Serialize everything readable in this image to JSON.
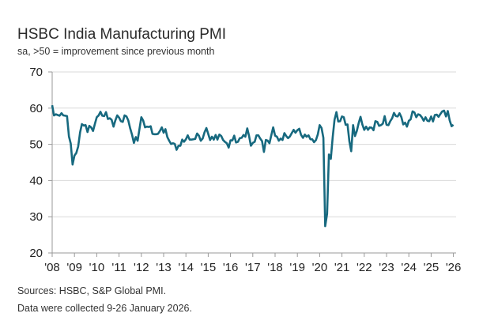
{
  "chart_data": {
    "type": "line",
    "title": "HSBC India Manufacturing PMI",
    "subtitle": "sa, >50 = improvement since previous month",
    "xlabel": "",
    "ylabel": "",
    "ylim": [
      20,
      70
    ],
    "yticks": [
      "20",
      "30",
      "40",
      "50",
      "60",
      "70"
    ],
    "xticks": [
      "'08",
      "'09",
      "'10",
      "'11",
      "'12",
      "'13",
      "'14",
      "'15",
      "'16",
      "'17",
      "'18",
      "'19",
      "'20",
      "'21",
      "'22",
      "'23",
      "'24",
      "'25",
      "'26"
    ],
    "x_start": "2008-01",
    "x_frequency": "monthly",
    "grid": "horizontal",
    "line_color": "#17697f",
    "values": [
      60.8,
      58.0,
      58.3,
      58.1,
      57.9,
      58.6,
      58.0,
      57.9,
      57.8,
      52.2,
      50.2,
      44.4,
      46.9,
      47.6,
      49.4,
      53.3,
      55.6,
      55.2,
      55.3,
      53.4,
      55.1,
      54.7,
      53.7,
      55.7,
      57.5,
      58.0,
      59.0,
      57.9,
      57.8,
      58.9,
      57.0,
      57.2,
      56.8,
      54.9,
      56.6,
      58.0,
      57.4,
      56.4,
      56.2,
      58.0,
      57.7,
      56.6,
      54.4,
      52.6,
      50.4,
      52.0,
      51.0,
      54.2,
      57.5,
      56.6,
      54.7,
      54.9,
      54.8,
      55.0,
      52.9,
      52.8,
      52.8,
      52.9,
      53.7,
      54.7,
      53.2,
      54.2,
      52.0,
      51.0,
      50.1,
      50.3,
      50.1,
      48.5,
      49.6,
      49.6,
      51.3,
      50.7,
      51.4,
      52.5,
      51.3,
      51.3,
      51.4,
      51.5,
      53.0,
      52.4,
      51.0,
      51.6,
      53.3,
      54.5,
      52.9,
      51.2,
      52.1,
      51.3,
      52.6,
      51.3,
      52.7,
      52.3,
      51.2,
      50.7,
      50.3,
      49.1,
      51.1,
      51.1,
      52.4,
      50.5,
      50.7,
      51.7,
      51.8,
      52.6,
      52.1,
      54.4,
      52.3,
      49.6,
      50.4,
      50.7,
      52.5,
      52.5,
      51.6,
      50.9,
      47.9,
      51.2,
      51.0,
      50.3,
      52.6,
      54.7,
      52.4,
      52.1,
      51.0,
      51.6,
      51.2,
      53.1,
      52.3,
      51.7,
      52.2,
      53.1,
      54.0,
      53.2,
      53.9,
      54.3,
      52.6,
      51.8,
      52.7,
      52.1,
      52.5,
      51.4,
      51.4,
      50.6,
      51.2,
      52.7,
      55.3,
      54.5,
      51.8,
      27.4,
      30.8,
      47.2,
      46.0,
      52.0,
      56.8,
      58.9,
      56.3,
      56.4,
      57.7,
      57.5,
      55.4,
      55.5,
      50.8,
      48.1,
      55.3,
      52.3,
      53.7,
      55.9,
      57.6,
      55.5,
      54.0,
      54.9,
      54.0,
      54.7,
      54.6,
      53.9,
      56.4,
      56.2,
      55.1,
      55.3,
      55.7,
      57.8,
      55.4,
      55.3,
      56.4,
      57.2,
      58.7,
      57.8,
      57.7,
      58.6,
      57.5,
      55.5,
      56.0,
      54.9,
      56.5,
      56.9,
      59.1,
      58.8,
      57.5,
      58.3,
      58.1,
      57.5,
      56.5,
      57.5,
      56.5,
      56.4,
      57.7,
      56.3,
      58.1,
      58.2,
      57.6,
      58.4,
      59.1,
      59.3,
      57.7,
      59.2,
      56.6,
      55.0,
      55.4
    ],
    "footnotes": [
      "Sources: HSBC, S&P Global PMI.",
      "Data were collected 9-26 January 2026."
    ]
  }
}
